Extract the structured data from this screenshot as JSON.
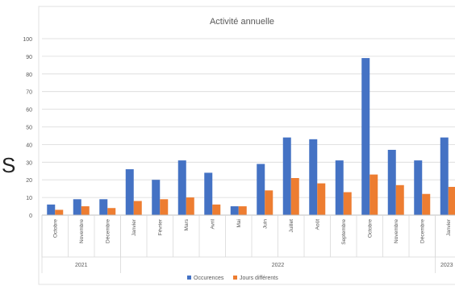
{
  "stray_text": "S",
  "chart_data": {
    "type": "bar",
    "title": "Activité annuelle",
    "xlabel": "",
    "ylabel": "",
    "ylim": [
      0,
      100
    ],
    "yticks": [
      0,
      10,
      20,
      30,
      40,
      50,
      60,
      70,
      80,
      90,
      100
    ],
    "grid": true,
    "legend_position": "bottom",
    "categories": [
      "Octobre",
      "Novembre",
      "Décembre",
      "Janvier",
      "Février",
      "Mars",
      "Avril",
      "Mai",
      "Juin",
      "Juillet",
      "Août",
      "Septembre",
      "Octobre",
      "Novembre",
      "Décembre",
      "Janvier"
    ],
    "groups": [
      {
        "label": "2021",
        "count": 3
      },
      {
        "label": "2022",
        "count": 12
      },
      {
        "label": "2023",
        "count": 1
      }
    ],
    "series": [
      {
        "name": "Occurences",
        "color": "#4472C4",
        "values": [
          6,
          9,
          9,
          26,
          20,
          31,
          24,
          5,
          29,
          44,
          43,
          31,
          89,
          37,
          31,
          44
        ]
      },
      {
        "name": "Jours différents",
        "color": "#ED7D31",
        "values": [
          3,
          5,
          4,
          8,
          9,
          10,
          6,
          5,
          14,
          21,
          18,
          13,
          23,
          17,
          12,
          16
        ]
      }
    ]
  }
}
